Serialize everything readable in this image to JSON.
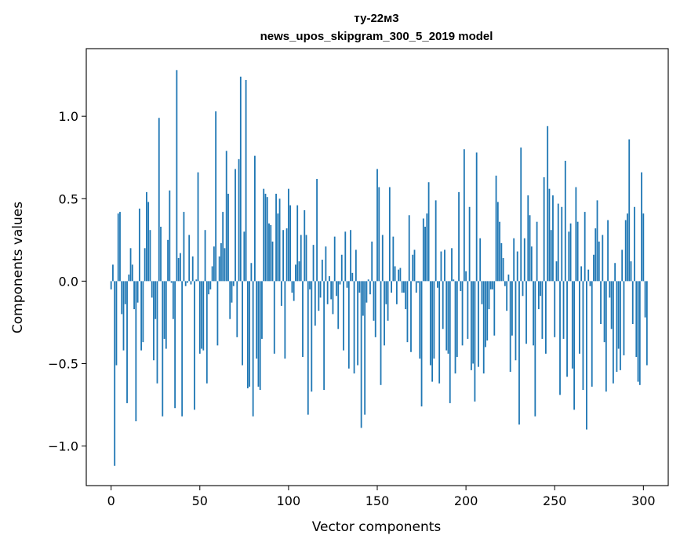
{
  "chart_data": {
    "type": "bar",
    "title": "ту-22м3",
    "subtitle": "news_upos_skipgram_300_5_2019 model",
    "xlabel": "Vector components",
    "ylabel": "Components values",
    "xlim": [
      -14,
      314
    ],
    "ylim": [
      -1.24,
      1.41
    ],
    "xticks": [
      0,
      50,
      100,
      150,
      200,
      250,
      300
    ],
    "xtick_labels": [
      "0",
      "50",
      "100",
      "150",
      "200",
      "250",
      "300"
    ],
    "yticks": [
      -1.0,
      -0.5,
      0.0,
      0.5,
      1.0
    ],
    "ytick_labels": [
      "−1.0",
      "−0.5",
      "0.0",
      "0.5",
      "1.0"
    ],
    "bar_color": "#1f77b4",
    "grid": false,
    "x_start": 0,
    "values": [
      -0.05,
      0.1,
      -1.12,
      -0.51,
      0.41,
      0.42,
      -0.2,
      -0.42,
      -0.14,
      -0.74,
      0.04,
      0.2,
      0.1,
      -0.17,
      -0.85,
      -0.13,
      0.44,
      -0.42,
      -0.37,
      0.2,
      0.54,
      0.48,
      0.31,
      -0.1,
      -0.48,
      -0.23,
      -0.62,
      0.99,
      0.33,
      -0.82,
      -0.35,
      -0.41,
      0.25,
      0.55,
      -0.01,
      -0.23,
      -0.77,
      1.28,
      0.14,
      0.17,
      -0.82,
      0.42,
      -0.03,
      -0.01,
      0.28,
      -0.02,
      0.15,
      -0.78,
      0.01,
      0.66,
      -0.44,
      -0.41,
      -0.42,
      0.31,
      -0.62,
      -0.08,
      -0.05,
      0.09,
      0.21,
      1.03,
      -0.39,
      0.15,
      0.23,
      0.42,
      0.2,
      0.79,
      0.53,
      -0.23,
      -0.13,
      -0.03,
      0.68,
      -0.34,
      0.74,
      1.24,
      -0.51,
      0.3,
      1.22,
      -0.65,
      -0.64,
      0.11,
      -0.82,
      0.76,
      -0.47,
      -0.64,
      -0.66,
      -0.35,
      0.56,
      0.53,
      0.51,
      0.35,
      0.34,
      0.24,
      -0.44,
      0.53,
      0.41,
      0.5,
      -0.15,
      0.31,
      -0.47,
      0.32,
      0.56,
      0.46,
      -0.07,
      -0.12,
      0.1,
      0.46,
      0.12,
      0.28,
      -0.46,
      0.43,
      0.28,
      -0.81,
      -0.05,
      -0.67,
      0.22,
      -0.27,
      0.62,
      -0.18,
      -0.1,
      0.13,
      -0.66,
      0.21,
      -0.14,
      0.03,
      -0.11,
      -0.2,
      0.27,
      -0.09,
      -0.29,
      -0.02,
      0.16,
      -0.42,
      0.3,
      -0.04,
      -0.53,
      0.31,
      0.05,
      -0.56,
      0.19,
      -0.51,
      -0.07,
      -0.89,
      -0.21,
      -0.81,
      -0.13,
      0.01,
      -0.08,
      0.24,
      -0.24,
      -0.34,
      0.68,
      0.57,
      -0.63,
      0.28,
      -0.39,
      -0.14,
      -0.24,
      0.57,
      -0.07,
      0.27,
      0.09,
      -0.14,
      0.07,
      0.08,
      -0.07,
      -0.07,
      -0.17,
      -0.37,
      0.4,
      -0.43,
      0.16,
      0.19,
      -0.07,
      -0.01,
      -0.47,
      -0.76,
      0.38,
      0.33,
      0.41,
      0.6,
      -0.51,
      -0.61,
      -0.47,
      0.49,
      -0.04,
      -0.62,
      0.18,
      -0.29,
      0.19,
      -0.42,
      -0.44,
      -0.74,
      0.2,
      0.01,
      -0.56,
      -0.46,
      0.54,
      -0.06,
      -0.39,
      0.8,
      0.06,
      -0.35,
      0.45,
      -0.54,
      -0.5,
      -0.73,
      0.78,
      -0.52,
      0.26,
      -0.14,
      -0.56,
      -0.4,
      -0.36,
      -0.17,
      -0.05,
      -0.05,
      -0.33,
      0.64,
      0.48,
      0.36,
      0.23,
      0.14,
      -0.03,
      -0.18,
      0.04,
      -0.55,
      -0.33,
      0.26,
      -0.48,
      0.18,
      -0.87,
      0.81,
      -0.09,
      0.26,
      -0.38,
      0.52,
      0.4,
      0.21,
      -0.39,
      -0.82,
      0.36,
      -0.17,
      -0.09,
      -0.35,
      0.63,
      -0.44,
      0.94,
      0.56,
      0.31,
      0.52,
      -0.34,
      0.12,
      0.47,
      -0.69,
      0.45,
      -0.35,
      0.73,
      -0.58,
      0.3,
      0.35,
      -0.53,
      -0.78,
      0.57,
      0.36,
      -0.44,
      0.09,
      -0.66,
      0.42,
      -0.9,
      0.07,
      -0.03,
      -0.64,
      0.16,
      0.32,
      0.49,
      0.24,
      -0.26,
      0.28,
      -0.37,
      -0.67,
      0.37,
      -0.1,
      -0.29,
      -0.62,
      0.11,
      -0.55,
      -0.41,
      -0.54,
      0.19,
      -0.45,
      0.37,
      0.41,
      0.86,
      0.12,
      -0.26,
      0.45,
      -0.46,
      -0.61,
      -0.63,
      0.66,
      0.41,
      -0.22,
      -0.51
    ]
  }
}
